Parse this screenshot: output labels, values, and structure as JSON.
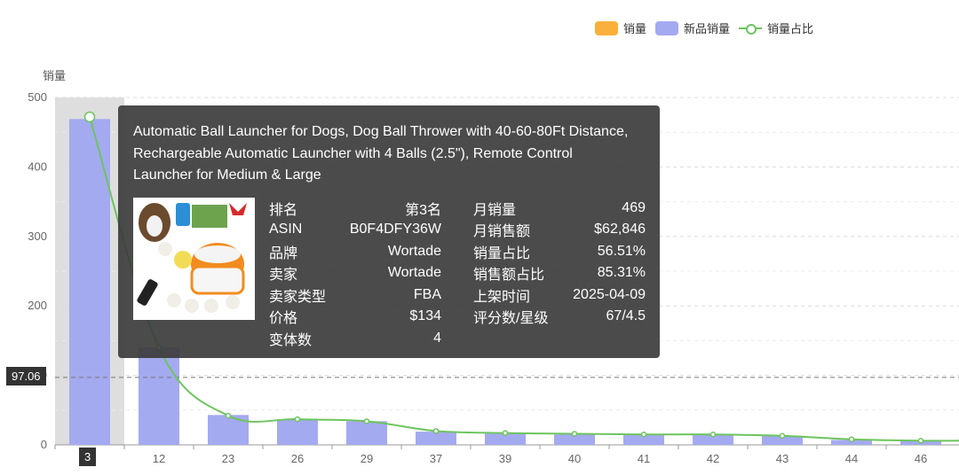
{
  "legend": {
    "items": [
      {
        "label": "销量",
        "color": "#fbb03b"
      },
      {
        "label": "新品销量",
        "color": "#a4aaf0"
      },
      {
        "label": "销量占比",
        "color": "#6dc45e"
      }
    ]
  },
  "chart_data": {
    "type": "bar",
    "ylabel": "销量",
    "ylim": [
      0,
      500
    ],
    "yticks": [
      0,
      100,
      200,
      300,
      400,
      500
    ],
    "categories": [
      "3",
      "12",
      "23",
      "26",
      "29",
      "37",
      "39",
      "40",
      "41",
      "42",
      "43",
      "44",
      "46"
    ],
    "series": [
      {
        "name": "新品销量",
        "values": [
          469,
          140,
          43,
          37,
          34,
          19,
          17,
          15,
          15,
          14,
          13,
          7,
          6
        ],
        "color": "#a4aaf0"
      },
      {
        "name": "销量占比",
        "values": [
          472,
          140,
          42,
          37,
          34,
          20,
          17,
          16,
          15,
          15,
          13,
          8,
          6
        ],
        "color": "#6dc45e",
        "type": "line"
      }
    ],
    "highlight_index": 0,
    "pointer_value": "97.06",
    "pointer_y": 97.06,
    "pointer_category": "3"
  },
  "tooltip": {
    "title": "Automatic Ball Launcher for Dogs, Dog Ball Thrower with 40-60-80Ft Distance, Rechargeable Automatic Launcher with 4 Balls (2.5\"), Remote Control Launcher for Medium & Large",
    "left": [
      {
        "k": "排名",
        "v": "第3名"
      },
      {
        "k": "ASIN",
        "v": "B0F4DFY36W"
      },
      {
        "k": "品牌",
        "v": "Wortade"
      },
      {
        "k": "卖家",
        "v": "Wortade"
      },
      {
        "k": "卖家类型",
        "v": "FBA"
      },
      {
        "k": "价格",
        "v": "$134"
      },
      {
        "k": "变体数",
        "v": "4"
      }
    ],
    "right": [
      {
        "k": "月销量",
        "v": "469"
      },
      {
        "k": "月销售额",
        "v": "$62,846"
      },
      {
        "k": "销量占比",
        "v": "56.51%"
      },
      {
        "k": "销售额占比",
        "v": "85.31%"
      },
      {
        "k": "上架时间",
        "v": "2025-04-09"
      },
      {
        "k": "评分数/星级",
        "v": "67/4.5"
      }
    ]
  }
}
